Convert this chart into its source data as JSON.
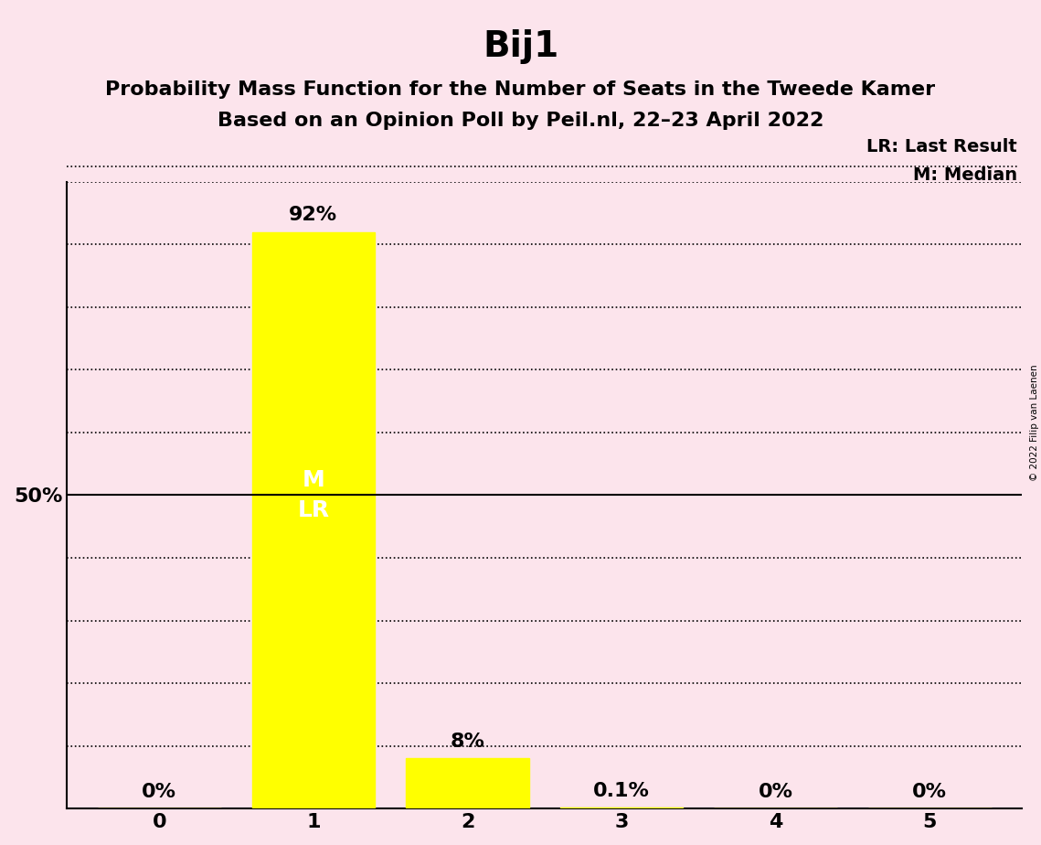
{
  "title": "Bij1",
  "subtitle1": "Probability Mass Function for the Number of Seats in the Tweede Kamer",
  "subtitle2": "Based on an Opinion Poll by Peil.nl, 22–23 April 2022",
  "copyright": "© 2022 Filip van Laenen",
  "categories": [
    0,
    1,
    2,
    3,
    4,
    5
  ],
  "values": [
    0.0,
    0.92,
    0.08,
    0.001,
    0.0,
    0.0
  ],
  "bar_labels": [
    "0%",
    "92%",
    "8%",
    "0.1%",
    "0%",
    "0%"
  ],
  "bar_color": "#ffff00",
  "background_color": "#fce4ec",
  "ylim": [
    0,
    1.0
  ],
  "yticks": [
    0.0,
    0.1,
    0.2,
    0.3,
    0.4,
    0.5,
    0.6,
    0.7,
    0.8,
    0.9,
    1.0
  ],
  "ytick_labels": [
    "",
    "",
    "",
    "",
    "",
    "50%",
    "",
    "",
    "",
    "",
    ""
  ],
  "median_seat": 1,
  "last_result_seat": 1,
  "legend_lr": "LR: Last Result",
  "legend_m": "M: Median",
  "title_fontsize": 28,
  "subtitle_fontsize": 16,
  "bar_label_fontsize": 16,
  "axis_fontsize": 16,
  "marker_fontsize": 18,
  "legend_fontsize": 14
}
